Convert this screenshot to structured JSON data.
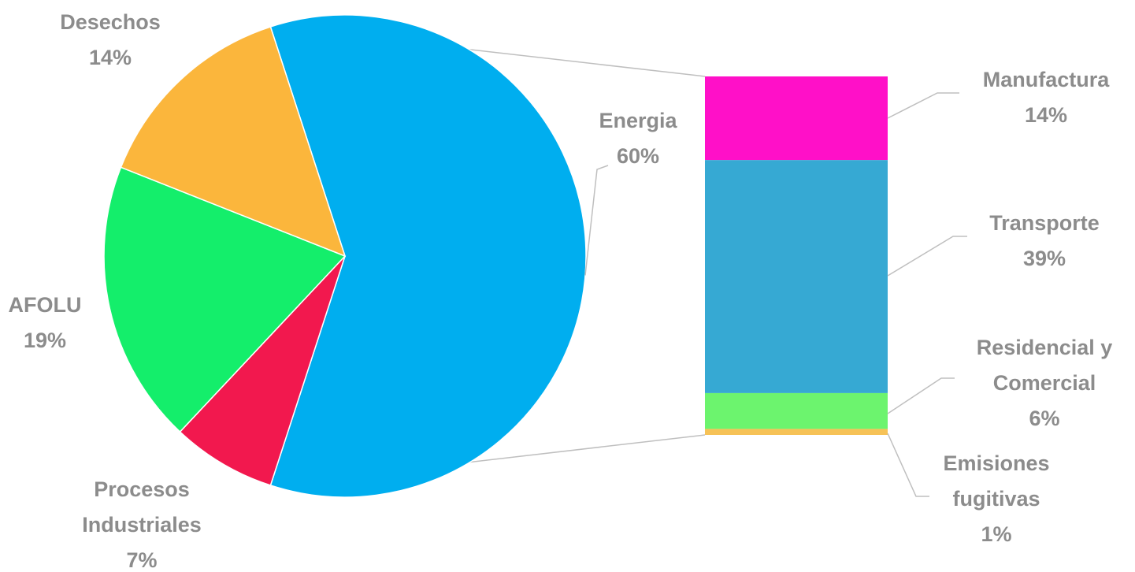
{
  "chart_data": {
    "type": "pie",
    "subtype": "bar-of-pie",
    "title": "",
    "grid": false,
    "legend": "none",
    "pie": {
      "slices": [
        {
          "label": "Energia",
          "value": 60,
          "pct_label": "60%",
          "color": "#00aeef"
        },
        {
          "label": "Procesos Industriales",
          "label_lines": [
            "Procesos",
            "Industriales"
          ],
          "value": 7,
          "pct_label": "7%",
          "color": "#f2184e"
        },
        {
          "label": "AFOLU",
          "value": 19,
          "pct_label": "19%",
          "color": "#14ee6b"
        },
        {
          "label": "Desechos",
          "value": 14,
          "pct_label": "14%",
          "color": "#fbb63c"
        }
      ]
    },
    "bar": {
      "expands": "Energia",
      "segments": [
        {
          "label": "Manufactura",
          "label_lines": [
            "Manufactura"
          ],
          "value": 14,
          "pct_label": "14%",
          "color": "#ff10c8"
        },
        {
          "label": "Transporte",
          "label_lines": [
            "Transporte"
          ],
          "value": 39,
          "pct_label": "39%",
          "color": "#36a9d3"
        },
        {
          "label": "Residencial y Comercial",
          "label_lines": [
            "Residencial y",
            "Comercial"
          ],
          "value": 6,
          "pct_label": "6%",
          "color": "#6cf46e"
        },
        {
          "label": "Emisiones fugitivas",
          "label_lines": [
            "Emisiones",
            "fugitivas"
          ],
          "value": 1,
          "pct_label": "1%",
          "color": "#f6c257"
        }
      ]
    }
  }
}
